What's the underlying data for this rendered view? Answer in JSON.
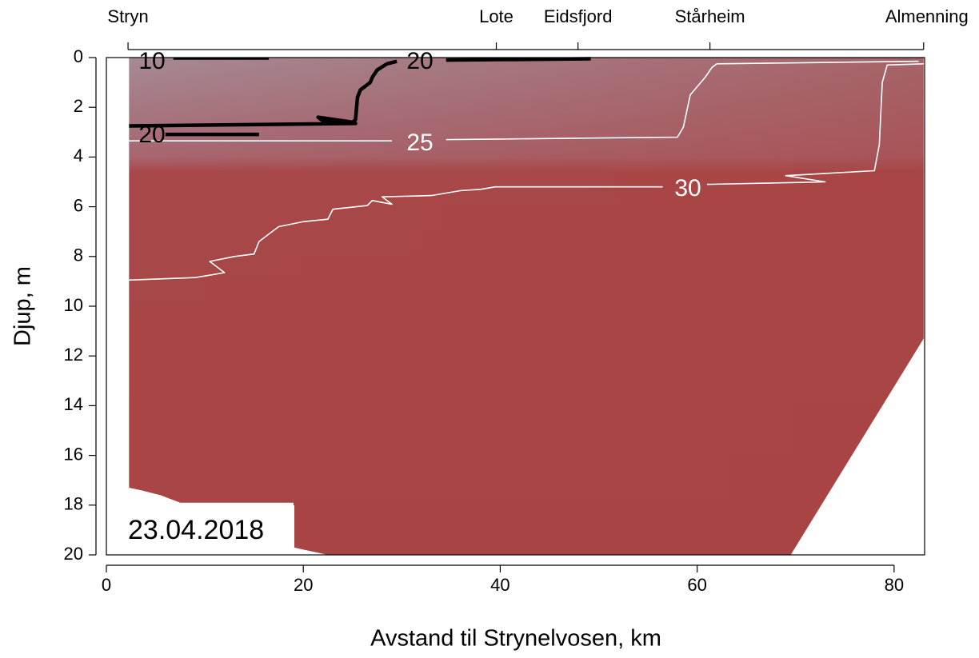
{
  "chart_data": {
    "type": "contour",
    "xlabel": "Avstand til Strynelvosen, km",
    "ylabel": "Djup, m",
    "annotation": "23.04.2018",
    "xlim": [
      0,
      83.1
    ],
    "ylim": [
      20,
      0
    ],
    "xticks": [
      0,
      20,
      40,
      60,
      80
    ],
    "yticks": [
      0,
      2,
      4,
      6,
      8,
      10,
      12,
      14,
      16,
      18,
      20
    ],
    "x2ticks": [
      {
        "value": 2.2,
        "label": "Stryn"
      },
      {
        "value": 39.6,
        "label": "Lote"
      },
      {
        "value": 47.9,
        "label": "Eidsfjord"
      },
      {
        "value": 61.3,
        "label": "Stårheim"
      },
      {
        "value": 83.0,
        "label": "Almenning"
      }
    ],
    "domain": {
      "x": [
        2.3,
        83,
        83,
        69.5,
        22.5,
        19,
        19,
        7.5,
        5.5,
        3.5,
        2.3
      ],
      "y": [
        0,
        0,
        11.3,
        20,
        20,
        19.7,
        17.9,
        17.9,
        17.6,
        17.4,
        17.3
      ]
    },
    "contours": [
      {
        "level": 10,
        "color": "#000000",
        "x": [
          6.8,
          16.5
        ],
        "y": [
          0.05,
          0.05
        ]
      },
      {
        "level": 20,
        "color": "#000000",
        "x": [
          49.2,
          34.5,
          null,
          29.5,
          28.5,
          27.5,
          27,
          26.8,
          25.8,
          25.5,
          25.3,
          25,
          21.5,
          22,
          25.3,
          2.3,
          null,
          6,
          15.5
        ],
        "y": [
          0.05,
          0.1,
          null,
          0.15,
          0.25,
          0.5,
          0.8,
          1.0,
          1.3,
          1.6,
          2.5,
          2.6,
          2.4,
          2.55,
          2.65,
          2.75,
          null,
          3.09,
          3.09
        ]
      },
      {
        "level": 25,
        "color": "#ffffff",
        "x": [
          2.3,
          29,
          null,
          34.5,
          58,
          58.6,
          59.3,
          60.8,
          61.5,
          62,
          82.5
        ],
        "y": [
          3.35,
          3.35,
          null,
          3.3,
          3.2,
          2.8,
          1.5,
          0.8,
          0.4,
          0.25,
          0.15
        ]
      },
      {
        "level": 30,
        "color": "#ffffff",
        "x": [
          2.3,
          9,
          12,
          10.5,
          13,
          15,
          15.5,
          17.5,
          20,
          22.5,
          23,
          26.5,
          27,
          29,
          28,
          33,
          36,
          38,
          39.5,
          56.5,
          null,
          61,
          73,
          69,
          78,
          78.5,
          78.8,
          79.3,
          83
        ],
        "y": [
          8.95,
          8.85,
          8.65,
          8.2,
          8,
          7.9,
          7.4,
          6.8,
          6.6,
          6.5,
          6.1,
          5.95,
          5.75,
          5.9,
          5.6,
          5.55,
          5.35,
          5.3,
          5.2,
          5.2,
          null,
          5.1,
          5.0,
          4.75,
          4.55,
          3.5,
          1.0,
          0.3,
          0.25
        ]
      }
    ]
  }
}
